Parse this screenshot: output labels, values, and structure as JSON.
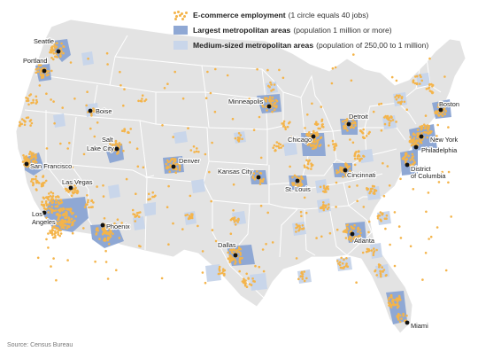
{
  "legend": {
    "ecommerce": {
      "title": "E-commerce employment",
      "note": "(1 circle equals 40 jobs)"
    },
    "large": {
      "title": "Largest metropolitan areas",
      "note": "(population 1 million or more)"
    },
    "medium": {
      "title": "Medium-sized metropolitan areas",
      "note": "(population of 250,00 to 1 million)"
    }
  },
  "source": "Source: Census Bureau",
  "colors": {
    "land": "#e3e3e3",
    "borders": "#ffffff",
    "dots": "#f4b44a",
    "large_metro": "#8fa8d4",
    "medium_metro": "#c9d6ea"
  },
  "cities": [
    {
      "key": "seattle",
      "name": "Seattle"
    },
    {
      "key": "portland",
      "name": "Portland"
    },
    {
      "key": "boise",
      "name": "Boise"
    },
    {
      "key": "salt_lake",
      "name": "Salt Lake City"
    },
    {
      "key": "san_francisco",
      "name": "San Francisco"
    },
    {
      "key": "las_vegas",
      "name": "Las Vegas"
    },
    {
      "key": "los_angeles",
      "name": "Los Angeles"
    },
    {
      "key": "phoenix",
      "name": "Phoenix"
    },
    {
      "key": "denver",
      "name": "Denver"
    },
    {
      "key": "minneapolis",
      "name": "Minneapolis"
    },
    {
      "key": "kansas_city",
      "name": "Kansas City"
    },
    {
      "key": "st_louis",
      "name": "St. Louis"
    },
    {
      "key": "dallas",
      "name": "Dallas"
    },
    {
      "key": "chicago",
      "name": "Chicago"
    },
    {
      "key": "detroit",
      "name": "Detroit"
    },
    {
      "key": "cincinnati",
      "name": "Cincinnati"
    },
    {
      "key": "atlanta",
      "name": "Atlanta"
    },
    {
      "key": "miami",
      "name": "Miami"
    },
    {
      "key": "boston",
      "name": "Boston"
    },
    {
      "key": "new_york",
      "name": "New York"
    },
    {
      "key": "philadelphia",
      "name": "Philadelphia"
    },
    {
      "key": "dc",
      "name": "District of Columbia"
    }
  ]
}
